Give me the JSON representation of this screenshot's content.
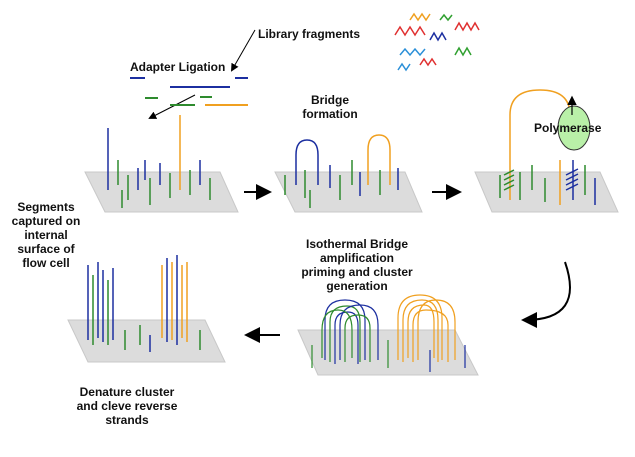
{
  "labels": {
    "library_fragments": "Library fragments",
    "adapter_ligation": "Adapter Ligation",
    "bridge_formation": [
      "Bridge",
      "formation"
    ],
    "polymerase": "Polymerase",
    "segments_captured": [
      "Segments",
      "captured on",
      "internal",
      "surface of",
      "flow cell"
    ],
    "isothermal": [
      "Isothermal Bridge",
      "amplification",
      "priming and cluster",
      "generation"
    ],
    "denature": [
      "Denature cluster",
      "and cleve reverse",
      "strands"
    ]
  },
  "colors": {
    "plate": "#dcdcdc",
    "plate_edge": "#c8c8c8",
    "blue_strand": "#1c2fa0",
    "green_strand": "#2e8b2e",
    "orange_strand": "#f0a020",
    "polymerase_fill": "#b9f0a8",
    "arrow": "#000000",
    "fragment_colors": [
      "#e03030",
      "#2a8fd8",
      "#30a030",
      "#f0a020",
      "#1c2fa0"
    ]
  },
  "icons": {
    "arrow_step": "right-arrow-icon",
    "arrow_curve": "curved-arrow-icon",
    "arrow_back": "left-arrow-icon"
  }
}
